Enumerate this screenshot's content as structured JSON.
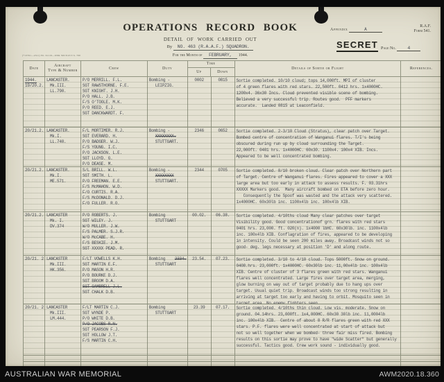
{
  "colors": {
    "paper": "#e4e1d2",
    "typed_ink": "#454851",
    "printed_ink": "#2c2c26",
    "stamp_ink": "#23231d",
    "grid_line": "#5c634e"
  },
  "archive_bar": {
    "left": "AUSTRALIAN WAR MEMORIAL",
    "right": "AWM2020.18.360"
  },
  "form": {
    "title": "OPERATIONS RECORD BOOK",
    "subtitle": "DETAIL OF WORK CARRIED OUT",
    "appendix_label": "Appendix",
    "appendix_value": "A",
    "raf_line1": "R.A.F.",
    "raf_line2": "Form 541.",
    "by_label": "By",
    "by_value": "NO. 463 (R.A.A.F.) SQUADRON.",
    "secret_stamp": "SECRET",
    "page_label": "Page No.",
    "page_value": "4",
    "month_label": "For the Month of",
    "month_value": "FEBRUARY,",
    "year_value": "1944.",
    "print_code": "(*13761—4511)  Wt. 61119—6384  500  8/43  T.S. 700"
  },
  "table": {
    "headers": {
      "date": "Date",
      "aircraft_l1": "Aircraft",
      "aircraft_l2": "Type & Number",
      "crew": "Crew",
      "duty": "Duty",
      "time": "Time",
      "up": "Up",
      "down": "Down",
      "details": "Details of Sortie or Flight",
      "references": "References."
    },
    "rows": [
      {
        "date_lines": [
          {
            "t": "1944.",
            "u": true
          },
          "19/20.2."
        ],
        "aircraft": [
          "LANCASTER.",
          "Mk.III.",
          "LL.790."
        ],
        "crew": [
          "P/O MERRILL. F.L.",
          "SGT RAWSTHORNE. F.E.",
          "SGT KNIGHT. J.H.",
          "P/O HALL. J.B.",
          "F/S O'TOOLE. M.K.",
          "P/O REED. E.J.",
          "SGT DANCKWARDT. F."
        ],
        "duty": [
          "Bombing -",
          "LEIPZIG."
        ],
        "up": "0002",
        "down": "0815",
        "details": "Sortie completed. 10/10 cloud; tops 14,000ft. MPI of cluster\nof 4 green flares with red stars. 22,500ft. 0412 hrs. 1x4000HC.\n1200x4. 36x30 Incs. Cloud prevented visible scene of bombing.\nBelieved a very successful trip. Routes good.  PFF markers\naccurate.  Landed 0815 at Leaconfield.",
        "references": ""
      },
      {
        "date_lines": [
          "20/21.2."
        ],
        "aircraft": [
          "LANCASTER.",
          "Mk.I.",
          "LL.740."
        ],
        "crew": [
          "F/L MORTIMER. R.J.",
          "SGT EVERARD. H.",
          "P/O BADGER. W.J.",
          "F/S YOUNG. I.C.",
          "P/O JACKSON. L.E.",
          "SGT LLOYD. G.",
          "P/O DEASE. M."
        ],
        "duty": [
          "Bombing -",
          {
            "t": "XXXXXXXX.",
            "s": true
          },
          "STUTTGART."
        ],
        "up": "2346",
        "down": "0652",
        "details": "Sortie completed. 2-3/10 Cloud (Stratus), clear patch over Target.\nBombed centre of concentration of Wanganui flares. T/I's being\nobscured during run up by cloud surrounding the Target.\n22,000ft. 0401 hrs. 1x4000HC. 60x30. 1100x4. 100x4 XIB. Incs.\nAppeared to be well concentrated bombing.",
        "references": ""
      },
      {
        "date_lines": [
          "20/21.2."
        ],
        "aircraft": [
          "LANCASTER.",
          "Mk.I.",
          "ME.571."
        ],
        "crew": [
          "S/L BRILL. W.L.",
          "SGT SMITH. L.",
          "P/O FREEMAN. E.E.",
          "F/S McMAHON. W.D.",
          "F/O CURTIS. R.A.",
          "F/S McDONALD. D.J.",
          "F/O FULLER. R.O."
        ],
        "duty": [
          "Bombing -",
          {
            "t": "XXXXXXXX",
            "s": true
          },
          "STUTTGART."
        ],
        "up": "2344",
        "down": "0705",
        "details": "Sortie completed. 8/10 broken cloud. Clear patch over Northern part\nof Target. Centre of Wanganui flares. Fires appeared to cover a XXX\nlarge area but too early in attack to assess results. F. 03.31hrs\nXXXXX Markers good.  Many aircraft bombed on ETA before zero hour.\n   Consequently the Spoof was wasted and the attack very scattered.\n1x4000HC. 60x30lb inc. 1100x4lb inc. 100x4lb XIB.",
        "references": ""
      },
      {
        "date_lines": [
          "20/21.2."
        ],
        "aircraft": [
          "LANCASTER",
          "Mk. I.",
          "DV.374"
        ],
        "crew": [
          "P/O ROBERTS. J.",
          "SGT WILEY. J.",
          "W/O MULLER. J.W.",
          "F/S PALMER. S.J.R.",
          "W/O McCABE. H.",
          "F/S BESKIE. J.M.",
          {
            "t": "SGT XXXXX PEAD. R.",
            "s": false
          }
        ],
        "duty": [
          "Bombing",
          "STUTTGART"
        ],
        "up": "00.02.",
        "down": "06.38.",
        "details": "Sortie completed. 4/10ths cloud Many clear patches over target\nVisibility good. Good concentrationof grn. flares with red stars\n0401 hrs. 23,000. ft. 020(n). 1x4000 lbHC. 60x30lb. inc. 1100x4lb\ninc. 100x4lb XIB. Conflagration of fires, appeared to be developing\nin intensity. Could be seen 200 miles away. Broadcast winds not so\ngood- deg. legs necessary at position 'D' and along route.",
        "references": ""
      },
      {
        "date_lines": [
          "20/21. 2."
        ],
        "aircraft": [
          "LANCASTER",
          "Mk.III.",
          "HK.356."
        ],
        "crew": [
          "F/LT VOWELLS K.H.",
          "SGT MARTIN E.F.",
          "P/O MASON H.R.",
          "P/O BOURKE D.J.",
          "SGT BROOM D.A.",
          {
            "t": "SGT GAMBRELL J.L.",
            "s": true
          },
          "SGT CHALK D.B."
        ],
        "duty": [
          {
            "t": "Bombing",
            "x": "2334."
          },
          "STUTTGART"
        ],
        "up": "23.54.",
        "down": "07.23.",
        "details": "Sortie completed. 3/10 to 4/10 cloud. Tops 5000ft. Snow on ground.\n0408.hrs. 23,000ft. 1x4000HC. 60x30lb inc. 11,00x4lb inc. 100x4lb\nXIB. Centre of cluster of 3 flares green with red stars. Wanganui\nflares well concentrated. Large fires over target area, merging,\nglow burning on way out of target probably due to hang ups over\ntarget. Usual quiet trip. Broadcast winds too strong resulting in\narriving at target too early and having to orbit. Mosquito seen in\ntarget area. No enemy fighters seen.",
        "references": ""
      },
      {
        "date_lines": [
          "20/21. 2."
        ],
        "aircraft": [
          "LANCASTER",
          "Mk.III.",
          "LM.444."
        ],
        "crew": [
          "F/LT MARTIN C.J.",
          "SGT WYNDE P.",
          "P/O WHITE D.B.",
          {
            "t": "P/O JACOBS R.N.",
            "s": true
          },
          "SGT PEARSON F.J.",
          "SGT HOLLOW J.T.",
          "F/S MARTIN C.H."
        ],
        "duty": [
          "Bombing",
          "STUTTGART"
        ],
        "up": "23.39",
        "down": "07.17.",
        "details": "Sortie completed. 4/10ths thin cloud. Low vis. moderate. Snow on\nground. 04.14hrs. 23,000ft. 1x4,000HC. 60x30 30lb inc. 11,0004lb\ninc. 100x4lb XIB.  Centre of about 8 R/R flares green with red XXX\nstars. P.F. flares were well concentrated at start of attack but\nnot so well together when we bombed- three fair miss fired. Bombing\nresults on this sortie may prove to have \"wide Scatter\" but generally\nsuccessful. Tactics good. Crew work sound - individually good.",
        "references": ""
      }
    ]
  }
}
